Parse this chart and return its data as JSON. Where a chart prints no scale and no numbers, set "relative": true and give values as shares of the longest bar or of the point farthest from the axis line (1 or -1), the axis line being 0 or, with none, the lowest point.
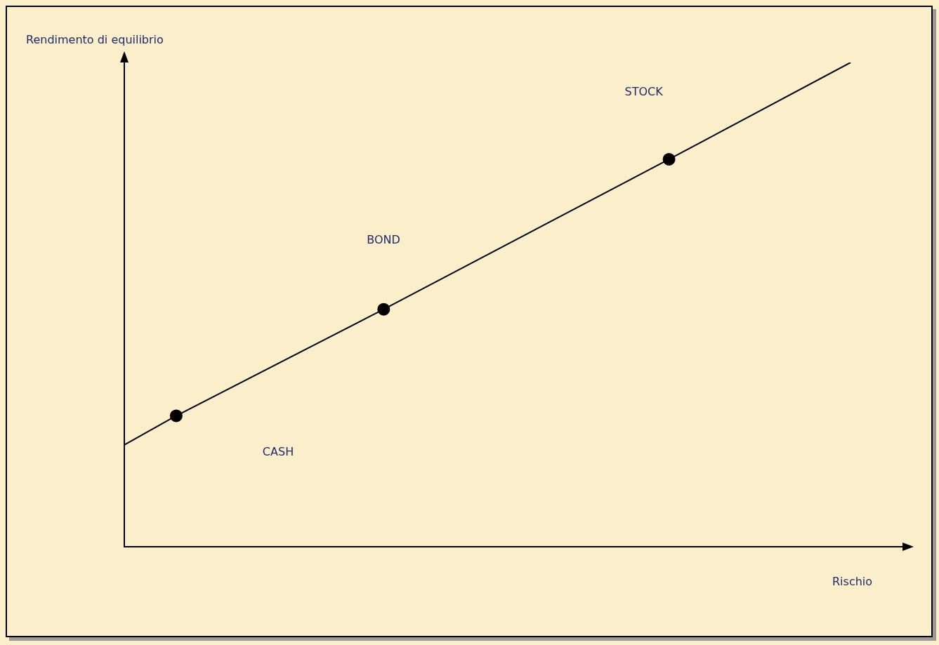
{
  "chart_data": {
    "type": "line",
    "relative": true,
    "xlabel": "Rischio",
    "ylabel": "Rendimento di equilibrio",
    "marker": "circle",
    "grid": false,
    "legend": false,
    "categories": [
      null,
      null,
      null,
      null,
      null,
      null,
      null,
      null,
      null,
      null,
      null,
      null,
      null,
      null,
      null,
      null,
      null,
      null,
      null,
      null,
      null,
      null,
      null,
      null,
      null,
      null,
      null,
      null,
      null,
      null,
      null
    ],
    "series": [
      {
        "color": "#000000",
        "values": [
          0.21,
          null,
          0.27,
          null,
          null,
          null,
          null,
          null,
          null,
          null,
          0.49,
          null,
          null,
          null,
          null,
          null,
          null,
          null,
          null,
          null,
          null,
          0.8,
          null,
          null,
          null,
          null,
          null,
          null,
          1,
          null,
          null
        ]
      }
    ],
    "annotations": [
      "CASH",
      "BOND",
      "STOCK"
    ]
  }
}
